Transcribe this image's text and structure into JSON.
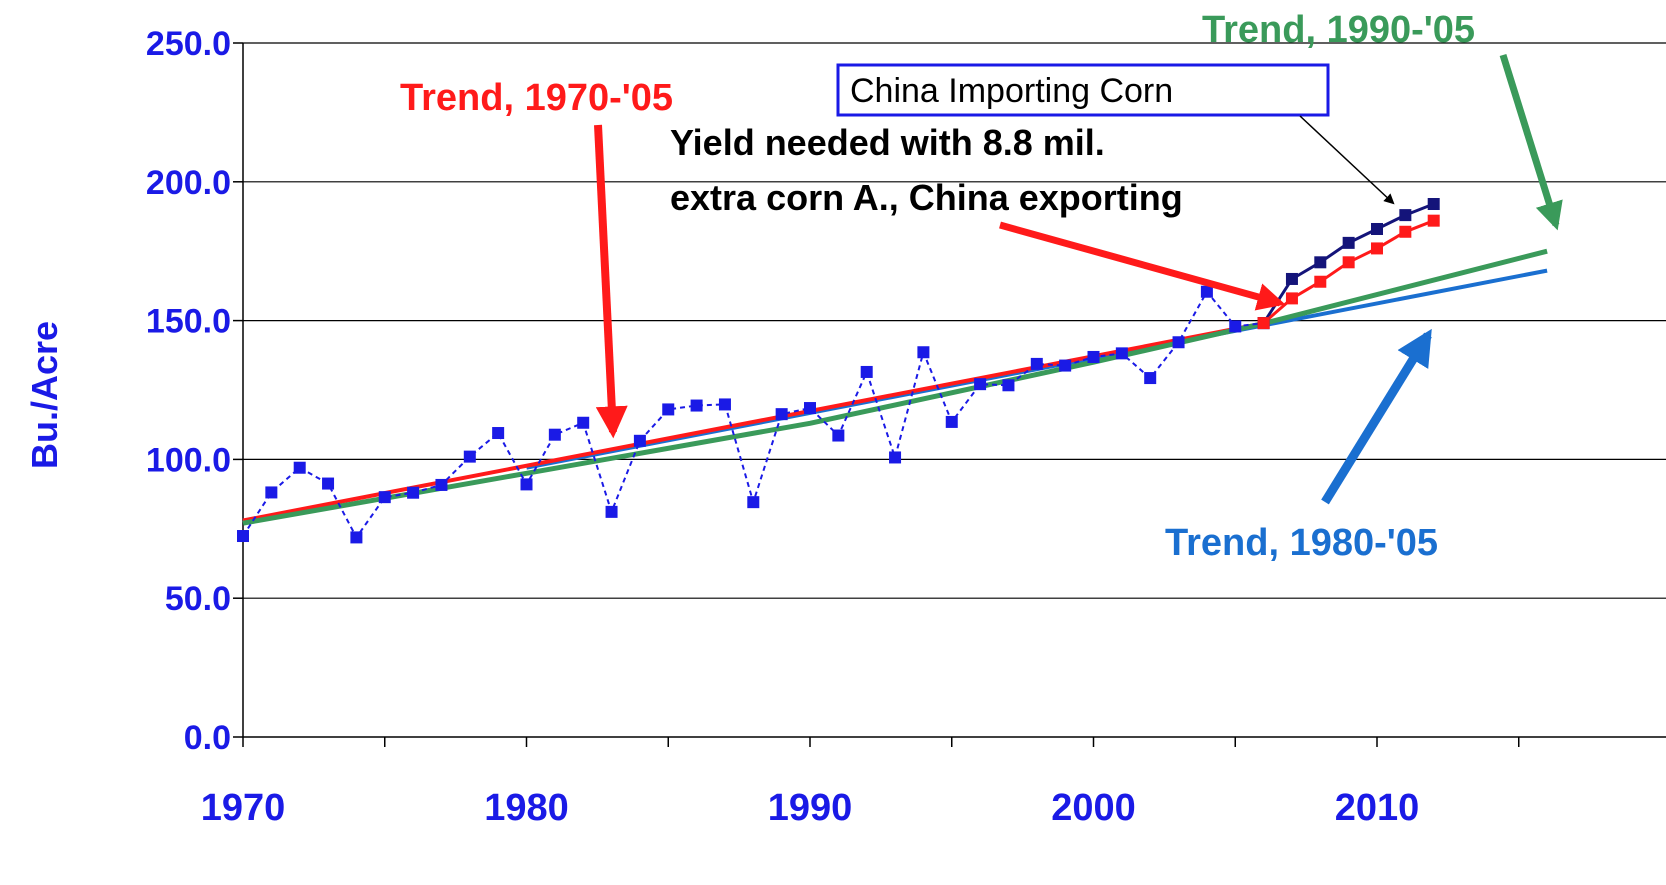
{
  "chart_data": {
    "type": "line",
    "ylabel": "Bu./Acre",
    "xlabel": "",
    "xlim": [
      1970,
      2016
    ],
    "ylim": [
      0,
      250
    ],
    "y_ticks": [
      "0.0",
      "50.0",
      "100.0",
      "150.0",
      "200.0",
      "250.0"
    ],
    "x_ticks": [
      "1970",
      "1980",
      "1990",
      "2000",
      "2010"
    ],
    "grid": "horizontal",
    "colors": {
      "axis_text": "#1a1ae6",
      "actual": "#1a1ae6",
      "trend_1970": "#ff1a1a",
      "trend_1980": "#1a6fd0",
      "trend_1990": "#3a9a5a",
      "importing": "#14147a",
      "exporting": "#ff1a1a"
    },
    "series": [
      {
        "key": "actual",
        "x": [
          1970,
          1971,
          1972,
          1973,
          1974,
          1975,
          1976,
          1977,
          1978,
          1979,
          1980,
          1981,
          1982,
          1983,
          1984,
          1985,
          1986,
          1987,
          1988,
          1989,
          1990,
          1991,
          1992,
          1993,
          1994,
          1995,
          1996,
          1997,
          1998,
          1999,
          2000,
          2001,
          2002,
          2003,
          2004,
          2005,
          2006
        ],
        "values": [
          72.4,
          88.1,
          97.0,
          91.3,
          71.9,
          86.4,
          88.0,
          90.8,
          101.0,
          109.5,
          91.0,
          108.9,
          113.2,
          81.1,
          106.7,
          118.0,
          119.4,
          119.8,
          84.6,
          116.3,
          118.5,
          108.6,
          131.5,
          100.7,
          138.6,
          113.5,
          127.1,
          126.7,
          134.4,
          133.8,
          136.9,
          138.2,
          129.3,
          142.2,
          160.4,
          147.9,
          149.1
        ]
      },
      {
        "key": "trend_1970",
        "x": [
          1970,
          2006
        ],
        "values": [
          78,
          149
        ]
      },
      {
        "key": "trend_1980",
        "x": [
          1980,
          2016
        ],
        "values": [
          97,
          168
        ]
      },
      {
        "key": "trend_1990",
        "x": [
          1970,
          1980,
          1990,
          2000,
          2006,
          2016
        ],
        "values": [
          77,
          95,
          113,
          135,
          149,
          175
        ]
      },
      {
        "key": "importing",
        "x": [
          2006,
          2007,
          2008,
          2009,
          2010,
          2011,
          2012
        ],
        "values": [
          149.1,
          165,
          171,
          178,
          183,
          188,
          192
        ]
      },
      {
        "key": "exporting",
        "x": [
          2006,
          2007,
          2008,
          2009,
          2010,
          2011,
          2012
        ],
        "values": [
          149.1,
          158,
          164,
          171,
          176,
          182,
          186
        ]
      }
    ],
    "annotations": {
      "trend_1970": "Trend, 1970-'05",
      "trend_1990": "Trend, 1990-'05",
      "trend_1980": "Trend, 1980-'05",
      "importing": "China Importing Corn",
      "exporting_line1": "Yield needed with 8.8 mil.",
      "exporting_line2": "extra corn A., China exporting"
    }
  }
}
